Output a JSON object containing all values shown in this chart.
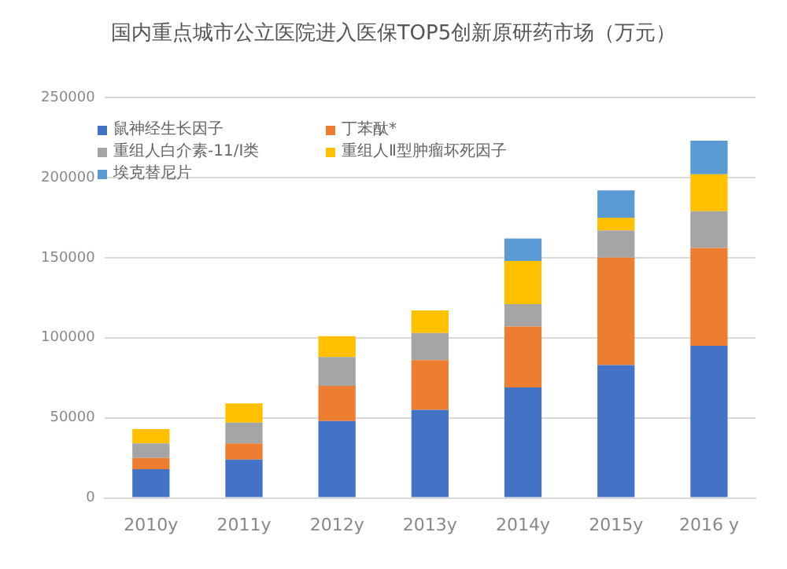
{
  "chart_data": {
    "type": "bar",
    "title": "国内重点城市公立医院进入医保TOP5创新原研药市场（万元）",
    "stacked": true,
    "categories": [
      "2010y",
      "2011y",
      "2012y",
      "2013y",
      "2014y",
      "2015y",
      "2016 y"
    ],
    "series": [
      {
        "name": "鼠神经生长因子",
        "color": "#4472c4",
        "values": [
          18000,
          24000,
          48000,
          55000,
          69000,
          83000,
          95000
        ]
      },
      {
        "name": "丁苯酞*",
        "color": "#ed7d31",
        "values": [
          7000,
          10000,
          22000,
          31000,
          38000,
          67000,
          61000
        ]
      },
      {
        "name": "重组人白介素-11/Ⅰ类",
        "color": "#a5a5a5",
        "values": [
          9000,
          13000,
          18000,
          17000,
          14000,
          17000,
          23000
        ]
      },
      {
        "name": "重组人Ⅱ型肿瘤坏死因子",
        "color": "#ffc000",
        "values": [
          9000,
          12000,
          13000,
          14000,
          27000,
          8000,
          23000
        ]
      },
      {
        "name": "埃克替尼片",
        "color": "#5b9bd5",
        "values": [
          0,
          0,
          0,
          0,
          14000,
          17000,
          21000
        ]
      }
    ],
    "ylim": [
      0,
      250000
    ],
    "yticks": [
      0,
      50000,
      100000,
      150000,
      200000,
      250000
    ],
    "grid": "y",
    "legend": "top left"
  }
}
